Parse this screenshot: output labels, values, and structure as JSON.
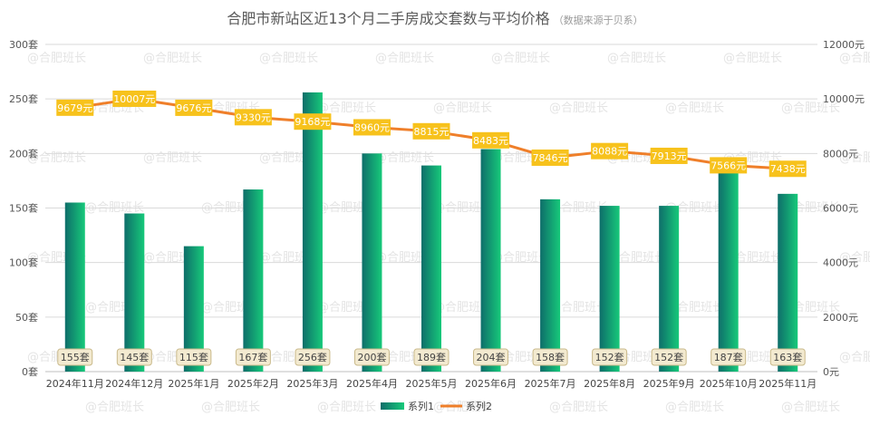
{
  "chart_data": {
    "type": "bar",
    "title": "合肥市新站区近13个月二手房成交套数与平均价格",
    "subtitle": "（数据来源于贝系）",
    "watermark": "@合肥班长",
    "categories": [
      "2024年11月",
      "2024年12月",
      "2025年1月",
      "2025年2月",
      "2025年3月",
      "2025年4月",
      "2025年5月",
      "2025年6月",
      "2025年7月",
      "2025年8月",
      "2025年9月",
      "2025年10月",
      "2025年11月"
    ],
    "y_left": {
      "min": 0,
      "max": 300,
      "step": 50,
      "tick_labels": [
        "0套",
        "50套",
        "100套",
        "150套",
        "200套",
        "250套",
        "300套"
      ]
    },
    "y_right": {
      "min": 0,
      "max": 12000,
      "step": 2000,
      "tick_labels": [
        "0元",
        "2000元",
        "4000元",
        "6000元",
        "8000元",
        "10000元",
        "12000元"
      ]
    },
    "grid": true,
    "legend_position": "bottom",
    "series": [
      {
        "name": "系列1",
        "type": "bar",
        "axis": "left",
        "values": [
          155,
          145,
          115,
          167,
          256,
          200,
          189,
          204,
          158,
          152,
          152,
          187,
          163
        ],
        "labels": [
          "155套",
          "145套",
          "115套",
          "167套",
          "256套",
          "200套",
          "189套",
          "204套",
          "158套",
          "152套",
          "152套",
          "187套",
          "163套"
        ],
        "color_start": "#0e6e6a",
        "color_end": "#17c97a"
      },
      {
        "name": "系列2",
        "type": "line",
        "axis": "right",
        "values": [
          9679,
          10007,
          9676,
          9330,
          9168,
          8960,
          8815,
          8483,
          7846,
          8088,
          7913,
          7566,
          7438
        ],
        "labels": [
          "9679元",
          "10007元",
          "9676元",
          "9330元",
          "9168元",
          "8960元",
          "8815元",
          "8483元",
          "7846元",
          "8088元",
          "7913元",
          "7566元",
          "7438元"
        ],
        "color": "#ef7f2a",
        "label_bg": "#f7c21c"
      }
    ]
  }
}
